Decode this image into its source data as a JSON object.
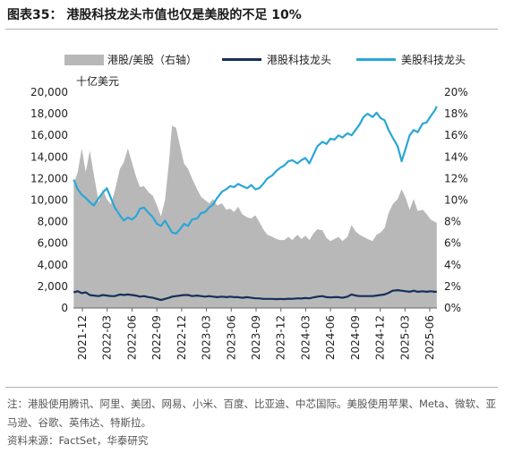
{
  "header": {
    "title": "图表35：  港股科技龙头市值也仅是美股的不足 10%"
  },
  "legend": {
    "items": [
      {
        "label": "港股/美股（右轴）",
        "kind": "area",
        "color": "#b8b8b8"
      },
      {
        "label": "港股科技龙头",
        "kind": "line",
        "color": "#14305a"
      },
      {
        "label": "美股科技龙头",
        "kind": "line",
        "color": "#2aa6d8"
      }
    ]
  },
  "unit_label": "十亿美元",
  "footnote": {
    "note": "注：港股使用腾讯、阿里、美团、网易、小米、百度、比亚迪、中芯国际。美股使用苹果、Meta、微软、亚马逊、谷歌、英伟达、特斯拉。",
    "source": "资料来源：FactSet，华泰研究"
  },
  "chart_data": {
    "type": "line",
    "x_tick_labels": [
      "2021-12",
      "2022-03",
      "2022-06",
      "2022-09",
      "2022-12",
      "2023-03",
      "2023-06",
      "2023-09",
      "2023-12",
      "2024-03",
      "2024-06",
      "2024-09",
      "2024-12",
      "2025-03",
      "2025-06"
    ],
    "x_range": [
      2021.917,
      2025.542
    ],
    "ylim_left": [
      0,
      20000
    ],
    "yticks_left": [
      "0",
      "2,000",
      "4,000",
      "6,000",
      "8,000",
      "10,000",
      "12,000",
      "14,000",
      "16,000",
      "18,000",
      "20,000"
    ],
    "ylim_right": [
      0,
      20
    ],
    "yticks_right": [
      "0%",
      "2%",
      "4%",
      "6%",
      "8%",
      "10%",
      "12%",
      "14%",
      "16%",
      "18%",
      "20%"
    ],
    "grid": false,
    "legend_position": "top",
    "series": [
      {
        "name": "港股/美股（右轴）",
        "type": "area",
        "axis": "right",
        "color": "#b8b8b8",
        "points": [
          [
            2021.92,
            11.5
          ],
          [
            2021.96,
            12.6
          ],
          [
            2022.0,
            14.8
          ],
          [
            2022.04,
            12.6
          ],
          [
            2022.08,
            14.6
          ],
          [
            2022.12,
            12.4
          ],
          [
            2022.17,
            9.8
          ],
          [
            2022.21,
            11.0
          ],
          [
            2022.25,
            10.1
          ],
          [
            2022.29,
            9.6
          ],
          [
            2022.33,
            10.9
          ],
          [
            2022.38,
            12.9
          ],
          [
            2022.42,
            13.5
          ],
          [
            2022.46,
            14.8
          ],
          [
            2022.5,
            13.5
          ],
          [
            2022.54,
            12.2
          ],
          [
            2022.58,
            11.2
          ],
          [
            2022.62,
            11.3
          ],
          [
            2022.67,
            10.7
          ],
          [
            2022.71,
            10.4
          ],
          [
            2022.75,
            9.5
          ],
          [
            2022.79,
            8.5
          ],
          [
            2022.83,
            10.0
          ],
          [
            2022.87,
            13.5
          ],
          [
            2022.9,
            16.9
          ],
          [
            2022.94,
            16.7
          ],
          [
            2022.98,
            15.0
          ],
          [
            2023.02,
            13.4
          ],
          [
            2023.06,
            12.9
          ],
          [
            2023.1,
            12.0
          ],
          [
            2023.15,
            11.0
          ],
          [
            2023.19,
            10.3
          ],
          [
            2023.23,
            10.0
          ],
          [
            2023.27,
            9.7
          ],
          [
            2023.31,
            10.1
          ],
          [
            2023.35,
            9.5
          ],
          [
            2023.4,
            9.7
          ],
          [
            2023.44,
            9.1
          ],
          [
            2023.48,
            9.2
          ],
          [
            2023.52,
            8.9
          ],
          [
            2023.56,
            9.4
          ],
          [
            2023.6,
            8.7
          ],
          [
            2023.65,
            8.4
          ],
          [
            2023.69,
            8.3
          ],
          [
            2023.73,
            8.6
          ],
          [
            2023.77,
            8.0
          ],
          [
            2023.81,
            7.3
          ],
          [
            2023.85,
            6.8
          ],
          [
            2023.9,
            6.6
          ],
          [
            2023.94,
            6.4
          ],
          [
            2023.98,
            6.3
          ],
          [
            2024.02,
            6.3
          ],
          [
            2024.06,
            6.6
          ],
          [
            2024.1,
            6.3
          ],
          [
            2024.15,
            6.8
          ],
          [
            2024.19,
            6.4
          ],
          [
            2024.23,
            6.7
          ],
          [
            2024.27,
            6.3
          ],
          [
            2024.31,
            6.9
          ],
          [
            2024.35,
            7.3
          ],
          [
            2024.4,
            7.2
          ],
          [
            2024.44,
            6.5
          ],
          [
            2024.48,
            6.2
          ],
          [
            2024.52,
            6.4
          ],
          [
            2024.56,
            6.6
          ],
          [
            2024.6,
            6.2
          ],
          [
            2024.65,
            6.6
          ],
          [
            2024.69,
            7.7
          ],
          [
            2024.73,
            7.1
          ],
          [
            2024.77,
            6.8
          ],
          [
            2024.81,
            6.6
          ],
          [
            2024.85,
            6.4
          ],
          [
            2024.9,
            6.2
          ],
          [
            2024.94,
            6.8
          ],
          [
            2024.98,
            7.0
          ],
          [
            2025.02,
            7.4
          ],
          [
            2025.06,
            8.8
          ],
          [
            2025.1,
            9.6
          ],
          [
            2025.15,
            10.1
          ],
          [
            2025.19,
            11.0
          ],
          [
            2025.23,
            10.2
          ],
          [
            2025.27,
            9.1
          ],
          [
            2025.31,
            10.1
          ],
          [
            2025.35,
            9.0
          ],
          [
            2025.4,
            9.1
          ],
          [
            2025.44,
            8.7
          ],
          [
            2025.48,
            8.2
          ],
          [
            2025.52,
            8.0
          ],
          [
            2025.54,
            7.9
          ]
        ]
      },
      {
        "name": "港股科技龙头",
        "type": "line",
        "axis": "left",
        "color": "#14305a",
        "points": [
          [
            2021.92,
            1450
          ],
          [
            2021.96,
            1550
          ],
          [
            2022.0,
            1380
          ],
          [
            2022.04,
            1450
          ],
          [
            2022.08,
            1200
          ],
          [
            2022.12,
            1150
          ],
          [
            2022.17,
            1100
          ],
          [
            2022.21,
            1200
          ],
          [
            2022.25,
            1150
          ],
          [
            2022.29,
            1100
          ],
          [
            2022.33,
            1100
          ],
          [
            2022.38,
            1250
          ],
          [
            2022.42,
            1200
          ],
          [
            2022.46,
            1250
          ],
          [
            2022.5,
            1200
          ],
          [
            2022.54,
            1150
          ],
          [
            2022.58,
            1050
          ],
          [
            2022.62,
            1100
          ],
          [
            2022.67,
            1000
          ],
          [
            2022.71,
            950
          ],
          [
            2022.75,
            850
          ],
          [
            2022.79,
            750
          ],
          [
            2022.83,
            850
          ],
          [
            2022.87,
            950
          ],
          [
            2022.9,
            1050
          ],
          [
            2022.94,
            1100
          ],
          [
            2022.98,
            1150
          ],
          [
            2023.02,
            1200
          ],
          [
            2023.06,
            1200
          ],
          [
            2023.1,
            1100
          ],
          [
            2023.15,
            1150
          ],
          [
            2023.19,
            1100
          ],
          [
            2023.23,
            1050
          ],
          [
            2023.27,
            1100
          ],
          [
            2023.31,
            1050
          ],
          [
            2023.35,
            1000
          ],
          [
            2023.4,
            1050
          ],
          [
            2023.44,
            1000
          ],
          [
            2023.48,
            1050
          ],
          [
            2023.52,
            1000
          ],
          [
            2023.56,
            1000
          ],
          [
            2023.6,
            950
          ],
          [
            2023.65,
            1000
          ],
          [
            2023.69,
            950
          ],
          [
            2023.73,
            900
          ],
          [
            2023.77,
            900
          ],
          [
            2023.81,
            850
          ],
          [
            2023.85,
            850
          ],
          [
            2023.9,
            850
          ],
          [
            2023.94,
            820
          ],
          [
            2023.98,
            850
          ],
          [
            2024.02,
            820
          ],
          [
            2024.06,
            860
          ],
          [
            2024.1,
            850
          ],
          [
            2024.15,
            900
          ],
          [
            2024.19,
            880
          ],
          [
            2024.23,
            920
          ],
          [
            2024.27,
            900
          ],
          [
            2024.31,
            980
          ],
          [
            2024.35,
            1050
          ],
          [
            2024.4,
            1100
          ],
          [
            2024.44,
            1000
          ],
          [
            2024.48,
            980
          ],
          [
            2024.52,
            1000
          ],
          [
            2024.56,
            1000
          ],
          [
            2024.6,
            950
          ],
          [
            2024.65,
            1050
          ],
          [
            2024.69,
            1250
          ],
          [
            2024.73,
            1150
          ],
          [
            2024.77,
            1100
          ],
          [
            2024.81,
            1100
          ],
          [
            2024.85,
            1100
          ],
          [
            2024.9,
            1100
          ],
          [
            2024.94,
            1150
          ],
          [
            2024.98,
            1200
          ],
          [
            2025.02,
            1250
          ],
          [
            2025.06,
            1400
          ],
          [
            2025.1,
            1600
          ],
          [
            2025.15,
            1650
          ],
          [
            2025.19,
            1600
          ],
          [
            2025.23,
            1550
          ],
          [
            2025.27,
            1500
          ],
          [
            2025.31,
            1600
          ],
          [
            2025.35,
            1500
          ],
          [
            2025.4,
            1550
          ],
          [
            2025.44,
            1500
          ],
          [
            2025.48,
            1550
          ],
          [
            2025.52,
            1500
          ],
          [
            2025.54,
            1500
          ]
        ]
      },
      {
        "name": "美股科技龙头",
        "type": "line",
        "axis": "left",
        "color": "#2aa6d8",
        "points": [
          [
            2021.92,
            11900
          ],
          [
            2021.96,
            11000
          ],
          [
            2022.0,
            10500
          ],
          [
            2022.04,
            10200
          ],
          [
            2022.08,
            9800
          ],
          [
            2022.12,
            9500
          ],
          [
            2022.17,
            10200
          ],
          [
            2022.21,
            10700
          ],
          [
            2022.25,
            11100
          ],
          [
            2022.29,
            10200
          ],
          [
            2022.33,
            9300
          ],
          [
            2022.38,
            8600
          ],
          [
            2022.42,
            8100
          ],
          [
            2022.46,
            8400
          ],
          [
            2022.5,
            8200
          ],
          [
            2022.54,
            8500
          ],
          [
            2022.58,
            9200
          ],
          [
            2022.62,
            9300
          ],
          [
            2022.67,
            8800
          ],
          [
            2022.71,
            8400
          ],
          [
            2022.75,
            7800
          ],
          [
            2022.79,
            7600
          ],
          [
            2022.83,
            8100
          ],
          [
            2022.87,
            7500
          ],
          [
            2022.9,
            7000
          ],
          [
            2022.94,
            6900
          ],
          [
            2022.98,
            7300
          ],
          [
            2023.02,
            7800
          ],
          [
            2023.06,
            7600
          ],
          [
            2023.1,
            8200
          ],
          [
            2023.15,
            8300
          ],
          [
            2023.19,
            8800
          ],
          [
            2023.23,
            8900
          ],
          [
            2023.27,
            9300
          ],
          [
            2023.31,
            9600
          ],
          [
            2023.35,
            10200
          ],
          [
            2023.4,
            10800
          ],
          [
            2023.44,
            11000
          ],
          [
            2023.48,
            11300
          ],
          [
            2023.52,
            11200
          ],
          [
            2023.56,
            11500
          ],
          [
            2023.6,
            11300
          ],
          [
            2023.65,
            11100
          ],
          [
            2023.69,
            11400
          ],
          [
            2023.73,
            11000
          ],
          [
            2023.77,
            11100
          ],
          [
            2023.81,
            11500
          ],
          [
            2023.85,
            12000
          ],
          [
            2023.9,
            12300
          ],
          [
            2023.94,
            12700
          ],
          [
            2023.98,
            13000
          ],
          [
            2024.02,
            13200
          ],
          [
            2024.06,
            13600
          ],
          [
            2024.1,
            13700
          ],
          [
            2024.15,
            13400
          ],
          [
            2024.19,
            13700
          ],
          [
            2024.23,
            13900
          ],
          [
            2024.27,
            13400
          ],
          [
            2024.31,
            14200
          ],
          [
            2024.35,
            15000
          ],
          [
            2024.4,
            15400
          ],
          [
            2024.44,
            15200
          ],
          [
            2024.48,
            15700
          ],
          [
            2024.52,
            15600
          ],
          [
            2024.56,
            16000
          ],
          [
            2024.6,
            15800
          ],
          [
            2024.65,
            16200
          ],
          [
            2024.69,
            16000
          ],
          [
            2024.73,
            16500
          ],
          [
            2024.77,
            17000
          ],
          [
            2024.81,
            17700
          ],
          [
            2024.85,
            18000
          ],
          [
            2024.9,
            17700
          ],
          [
            2024.94,
            18100
          ],
          [
            2024.98,
            17600
          ],
          [
            2025.02,
            17400
          ],
          [
            2025.06,
            16500
          ],
          [
            2025.1,
            15800
          ],
          [
            2025.15,
            15000
          ],
          [
            2025.19,
            13600
          ],
          [
            2025.23,
            14800
          ],
          [
            2025.27,
            16000
          ],
          [
            2025.31,
            16500
          ],
          [
            2025.35,
            16300
          ],
          [
            2025.4,
            17100
          ],
          [
            2025.44,
            17200
          ],
          [
            2025.48,
            17800
          ],
          [
            2025.52,
            18300
          ],
          [
            2025.54,
            18700
          ]
        ]
      }
    ]
  }
}
